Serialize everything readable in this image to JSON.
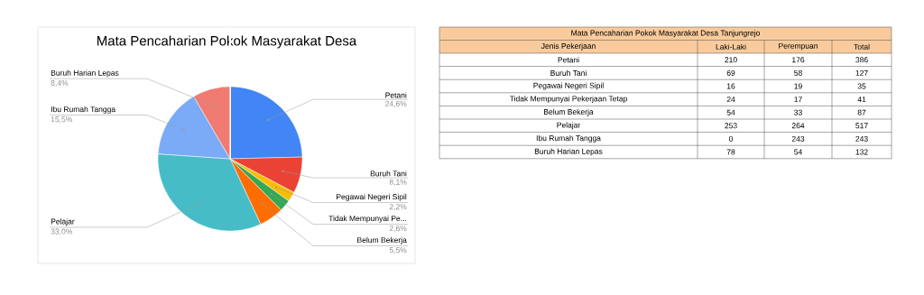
{
  "chart_data": [
    {
      "type": "pie",
      "title": "Mata Pencaharian Pokok Masyarakat Desa",
      "categories": [
        "Petani",
        "Buruh Tani",
        "Pegawai Negeri Sipil",
        "Tidak Mempunyai Pe...",
        "Belum Bekerja",
        "Pelajar",
        "Ibu Rumah Tangga",
        "Buruh Harian Lepas"
      ],
      "values": [
        24.6,
        8.1,
        2.2,
        2.6,
        5.5,
        33.0,
        15.5,
        8.4
      ],
      "value_labels": [
        "24,6%",
        "8,1%",
        "2,2%",
        "2,6%",
        "5,5%",
        "33,0%",
        "15,5%",
        "8,4%"
      ],
      "colors": [
        "#4285f4",
        "#ea4335",
        "#fbbc04",
        "#34a853",
        "#ff6d01",
        "#46bdc6",
        "#7baaf7",
        "#f07b72"
      ]
    },
    {
      "type": "other",
      "title": "Mata Pencaharian Pokok Masyarakat Desa Tanjungrejo",
      "xlabel": "Jenis Pekerjaan",
      "categories": [
        "Petani",
        "Buruh Tani",
        "Pegawai Negeri Sipil",
        "Tidak Mempunyai Pekerjaan Tetap",
        "Belum Bekerja",
        "Pelajar",
        "Ibu Rumah Tangga",
        "Buruh Harian Lepas"
      ],
      "series": [
        {
          "name": "Laki-Laki",
          "values": [
            210,
            69,
            16,
            24,
            54,
            253,
            0,
            78
          ]
        },
        {
          "name": "Perempuan",
          "values": [
            176,
            58,
            19,
            17,
            33,
            264,
            243,
            54
          ]
        },
        {
          "name": "Total",
          "values": [
            386,
            127,
            35,
            41,
            87,
            517,
            243,
            132
          ]
        }
      ],
      "data_labels": true
    }
  ]
}
